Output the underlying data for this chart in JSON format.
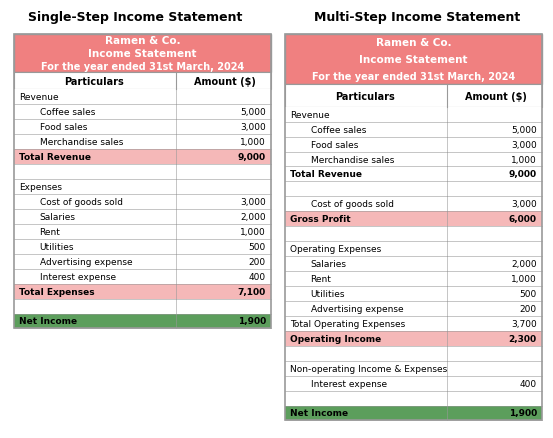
{
  "title_left": "Single-Step Income Statement",
  "title_right": "Multi-Step Income Statement",
  "header_text": [
    "Ramen & Co.",
    "Income Statement",
    "For the year ended 31st March, 2024"
  ],
  "col_headers": [
    "Particulars",
    "Amount ($)"
  ],
  "header_bg": "#F08080",
  "header_text_color": "#FFFFFF",
  "light_pink_bg": "#F5B8B8",
  "green_bg": "#5C9E5C",
  "white_bg": "#FFFFFF",
  "border_color": "#999999",
  "left_rows": [
    {
      "label": "Revenue",
      "value": "",
      "indent": false,
      "bold": false,
      "bg": "#FFFFFF"
    },
    {
      "label": "Coffee sales",
      "value": "5,000",
      "indent": true,
      "bold": false,
      "bg": "#FFFFFF"
    },
    {
      "label": "Food sales",
      "value": "3,000",
      "indent": true,
      "bold": false,
      "bg": "#FFFFFF"
    },
    {
      "label": "Merchandise sales",
      "value": "1,000",
      "indent": true,
      "bold": false,
      "bg": "#FFFFFF"
    },
    {
      "label": "Total Revenue",
      "value": "9,000",
      "indent": false,
      "bold": true,
      "bg": "#F5B8B8"
    },
    {
      "label": "",
      "value": "",
      "indent": false,
      "bold": false,
      "bg": "#FFFFFF"
    },
    {
      "label": "Expenses",
      "value": "",
      "indent": false,
      "bold": false,
      "bg": "#FFFFFF"
    },
    {
      "label": "Cost of goods sold",
      "value": "3,000",
      "indent": true,
      "bold": false,
      "bg": "#FFFFFF"
    },
    {
      "label": "Salaries",
      "value": "2,000",
      "indent": true,
      "bold": false,
      "bg": "#FFFFFF"
    },
    {
      "label": "Rent",
      "value": "1,000",
      "indent": true,
      "bold": false,
      "bg": "#FFFFFF"
    },
    {
      "label": "Utilities",
      "value": "500",
      "indent": true,
      "bold": false,
      "bg": "#FFFFFF"
    },
    {
      "label": "Advertising expense",
      "value": "200",
      "indent": true,
      "bold": false,
      "bg": "#FFFFFF"
    },
    {
      "label": "Interest expense",
      "value": "400",
      "indent": true,
      "bold": false,
      "bg": "#FFFFFF"
    },
    {
      "label": "Total Expenses",
      "value": "7,100",
      "indent": false,
      "bold": true,
      "bg": "#F5B8B8"
    },
    {
      "label": "",
      "value": "",
      "indent": false,
      "bold": false,
      "bg": "#FFFFFF"
    },
    {
      "label": "Net Income",
      "value": "1,900",
      "indent": false,
      "bold": true,
      "bg": "#5C9E5C"
    }
  ],
  "right_rows": [
    {
      "label": "Revenue",
      "value": "",
      "indent": false,
      "bold": false,
      "bg": "#FFFFFF"
    },
    {
      "label": "Coffee sales",
      "value": "5,000",
      "indent": true,
      "bold": false,
      "bg": "#FFFFFF"
    },
    {
      "label": "Food sales",
      "value": "3,000",
      "indent": true,
      "bold": false,
      "bg": "#FFFFFF"
    },
    {
      "label": "Merchandise sales",
      "value": "1,000",
      "indent": true,
      "bold": false,
      "bg": "#FFFFFF"
    },
    {
      "label": "Total Revenue",
      "value": "9,000",
      "indent": false,
      "bold": true,
      "bg": "#FFFFFF"
    },
    {
      "label": "",
      "value": "",
      "indent": false,
      "bold": false,
      "bg": "#FFFFFF"
    },
    {
      "label": "Cost of goods sold",
      "value": "3,000",
      "indent": true,
      "bold": false,
      "bg": "#FFFFFF"
    },
    {
      "label": "Gross Profit",
      "value": "6,000",
      "indent": false,
      "bold": true,
      "bg": "#F5B8B8"
    },
    {
      "label": "",
      "value": "",
      "indent": false,
      "bold": false,
      "bg": "#FFFFFF"
    },
    {
      "label": "Operating Expenses",
      "value": "",
      "indent": false,
      "bold": false,
      "bg": "#FFFFFF"
    },
    {
      "label": "Salaries",
      "value": "2,000",
      "indent": true,
      "bold": false,
      "bg": "#FFFFFF"
    },
    {
      "label": "Rent",
      "value": "1,000",
      "indent": true,
      "bold": false,
      "bg": "#FFFFFF"
    },
    {
      "label": "Utilities",
      "value": "500",
      "indent": true,
      "bold": false,
      "bg": "#FFFFFF"
    },
    {
      "label": "Advertising expense",
      "value": "200",
      "indent": true,
      "bold": false,
      "bg": "#FFFFFF"
    },
    {
      "label": "Total Operating Expenses",
      "value": "3,700",
      "indent": false,
      "bold": false,
      "bg": "#FFFFFF"
    },
    {
      "label": "Operating Income",
      "value": "2,300",
      "indent": false,
      "bold": true,
      "bg": "#F5B8B8"
    },
    {
      "label": "",
      "value": "",
      "indent": false,
      "bold": false,
      "bg": "#FFFFFF"
    },
    {
      "label": "Non-operating Income & Expenses",
      "value": "",
      "indent": false,
      "bold": false,
      "bg": "#FFFFFF"
    },
    {
      "label": "Interest expense",
      "value": "400",
      "indent": true,
      "bold": false,
      "bg": "#FFFFFF"
    },
    {
      "label": "",
      "value": "",
      "indent": false,
      "bold": false,
      "bg": "#FFFFFF"
    },
    {
      "label": "Net Income",
      "value": "1,900",
      "indent": false,
      "bold": true,
      "bg": "#5C9E5C"
    }
  ],
  "fig_width": 5.53,
  "fig_height": 4.39,
  "dpi": 100
}
